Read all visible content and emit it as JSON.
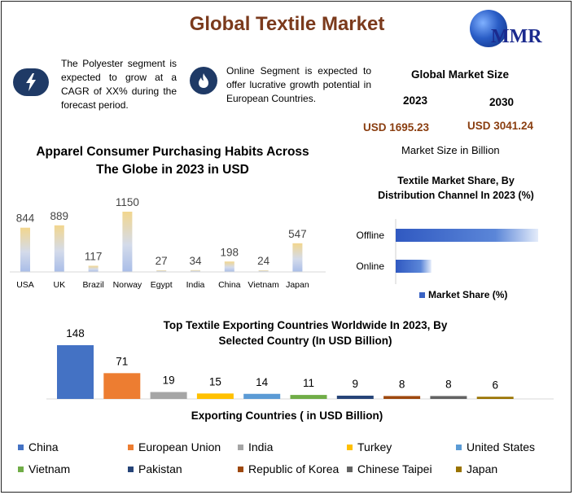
{
  "header": {
    "title": "Global Textile Market",
    "logo_text": "MMR"
  },
  "notes": {
    "polyester": "The Polyester segment is expected to grow at a CAGR of XX% during the forecast period.",
    "online": "Online Segment is expected to offer lucrative growth potential in European Countries."
  },
  "market_size": {
    "title": "Global Market Size",
    "year1": "2023",
    "year2": "2030",
    "value1": "USD 1695.23",
    "value2": "USD 3041.24",
    "caption": "Market Size in Billion"
  },
  "chart_data": [
    {
      "id": "apparel",
      "type": "bar",
      "title": "Apparel Consumer Purchasing Habits Across The Globe in 2023 in USD",
      "categories": [
        "USA",
        "UK",
        "Brazil",
        "Norway",
        "Egypt",
        "India",
        "China",
        "Vietnam",
        "Japan"
      ],
      "values": [
        844,
        889,
        117,
        1150,
        27,
        34,
        198,
        24,
        547
      ],
      "value_labels": [
        "844",
        "889",
        "117",
        "1150",
        "27",
        "34",
        "198",
        "24",
        "547"
      ],
      "ylim": [
        0,
        1150
      ],
      "xlabel": "",
      "ylabel": "",
      "color": "#e8c980"
    },
    {
      "id": "distribution",
      "type": "bar",
      "orientation": "horizontal",
      "title": "Textile Market Share, By Distribution Channel In 2023 (%)",
      "categories": [
        "Offline",
        "Online"
      ],
      "values": [
        80,
        20
      ],
      "legend": "Market Share (%)",
      "color": "#3a63c4"
    },
    {
      "id": "exports",
      "type": "bar",
      "title": "Top Textile Exporting Countries Worldwide In 2023, By Selected Country (In USD Billion)",
      "xlabel": "Exporting Countries ( in USD Billion)",
      "categories": [
        "China",
        "European Union",
        "India",
        "Turkey",
        "United States",
        "Vietnam",
        "Pakistan",
        "Republic of Korea",
        "Chinese Taipei",
        "Japan"
      ],
      "values": [
        148,
        71,
        19,
        15,
        14,
        11,
        9,
        8,
        8,
        6
      ],
      "value_labels": [
        "148",
        "71",
        "19",
        "15",
        "14",
        "11",
        "9",
        "8",
        "8",
        "6"
      ],
      "colors": [
        "#4472c4",
        "#ed7d31",
        "#a5a5a5",
        "#ffc000",
        "#5b9bd5",
        "#70ad47",
        "#264478",
        "#9e480e",
        "#636363",
        "#997300"
      ],
      "ylim": [
        0,
        148
      ]
    }
  ]
}
